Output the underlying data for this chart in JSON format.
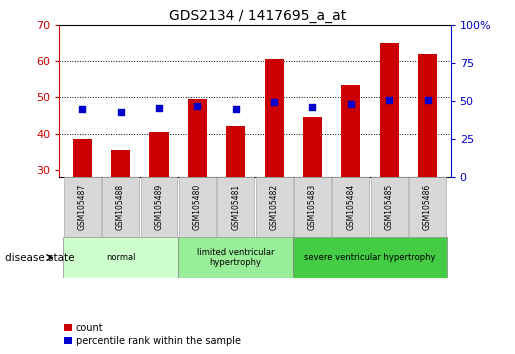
{
  "title": "GDS2134 / 1417695_a_at",
  "samples": [
    "GSM105487",
    "GSM105488",
    "GSM105489",
    "GSM105480",
    "GSM105481",
    "GSM105482",
    "GSM105483",
    "GSM105484",
    "GSM105485",
    "GSM105486"
  ],
  "count_values": [
    38.5,
    35.5,
    40.5,
    49.5,
    42.0,
    60.5,
    44.5,
    53.5,
    65.0,
    62.0
  ],
  "percentile_values": [
    45.0,
    43.0,
    45.5,
    46.5,
    44.5,
    49.5,
    46.0,
    48.0,
    50.5,
    50.5
  ],
  "ylim_left": [
    28,
    70
  ],
  "ylim_right": [
    0,
    100
  ],
  "yticks_left": [
    30,
    40,
    50,
    60,
    70
  ],
  "yticks_right": [
    0,
    25,
    50,
    75,
    100
  ],
  "bar_color": "#cc0000",
  "dot_color": "#0000cc",
  "bar_width": 0.5,
  "groups": [
    {
      "label": "normal",
      "start": 0,
      "end": 3,
      "color": "#ccffcc"
    },
    {
      "label": "limited ventricular\nhypertrophy",
      "start": 3,
      "end": 6,
      "color": "#99ee99"
    },
    {
      "label": "severe ventricular hypertrophy",
      "start": 6,
      "end": 10,
      "color": "#44cc44"
    }
  ],
  "disease_state_label": "disease state",
  "legend_count_label": "count",
  "legend_percentile_label": "percentile rank within the sample",
  "left_tick_color": "#cc0000",
  "right_tick_color": "#0000cc",
  "background_color": "#ffffff",
  "tick_label_bg": "#d8d8d8"
}
